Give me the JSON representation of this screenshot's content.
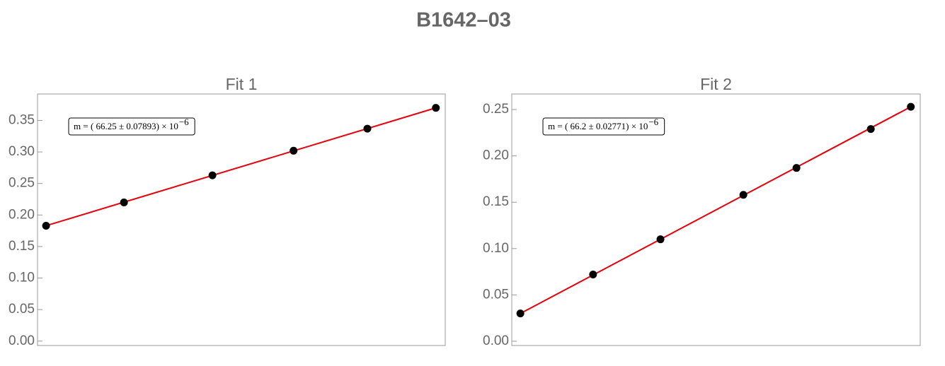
{
  "title": "B1642–03",
  "chart_data": [
    {
      "type": "scatter",
      "title": "Fit 1",
      "annotation": "m = ( 66.25 ± 0.07893) × 10",
      "annotation_exponent": "−6",
      "points": {
        "color": "#000000",
        "x": [
          2.1,
          21.2,
          42.9,
          62.8,
          80.9,
          97.7
        ],
        "values": [
          0.183,
          0.22,
          0.263,
          0.302,
          0.337,
          0.37
        ]
      },
      "fit": {
        "color": "#e8000b",
        "x": [
          2.1,
          97.7
        ],
        "values": [
          0.183,
          0.37
        ]
      },
      "xlim": [
        0,
        100
      ],
      "ylim": [
        -0.007,
        0.392
      ],
      "yticks": [
        {
          "value": 0,
          "label": "0.00"
        },
        {
          "value": 0.05,
          "label": "0.05"
        },
        {
          "value": 0.1,
          "label": "0.10"
        },
        {
          "value": 0.15,
          "label": "0.15"
        },
        {
          "value": 0.2,
          "label": "0.20"
        },
        {
          "value": 0.25,
          "label": "0.25"
        },
        {
          "value": 0.3,
          "label": "0.30"
        },
        {
          "value": 0.35,
          "label": "0.35"
        }
      ]
    },
    {
      "type": "scatter",
      "title": "Fit 2",
      "annotation": "m = ( 66.2 ± 0.02771) × 10",
      "annotation_exponent": "−6",
      "points": {
        "color": "#000000",
        "x": [
          2.1,
          19.9,
          36.4,
          56.7,
          69.7,
          87.9,
          97.7
        ],
        "values": [
          0.03,
          0.072,
          0.11,
          0.158,
          0.187,
          0.229,
          0.253
        ]
      },
      "fit": {
        "color": "#e8000b",
        "x": [
          2.1,
          97.7
        ],
        "values": [
          0.03,
          0.253
        ]
      },
      "xlim": [
        0,
        100
      ],
      "ylim": [
        -0.0046,
        0.2668
      ],
      "yticks": [
        {
          "value": 0,
          "label": "0.00"
        },
        {
          "value": 0.05,
          "label": "0.05"
        },
        {
          "value": 0.1,
          "label": "0.10"
        },
        {
          "value": 0.15,
          "label": "0.15"
        },
        {
          "value": 0.2,
          "label": "0.20"
        },
        {
          "value": 0.25,
          "label": "0.25"
        }
      ]
    }
  ]
}
